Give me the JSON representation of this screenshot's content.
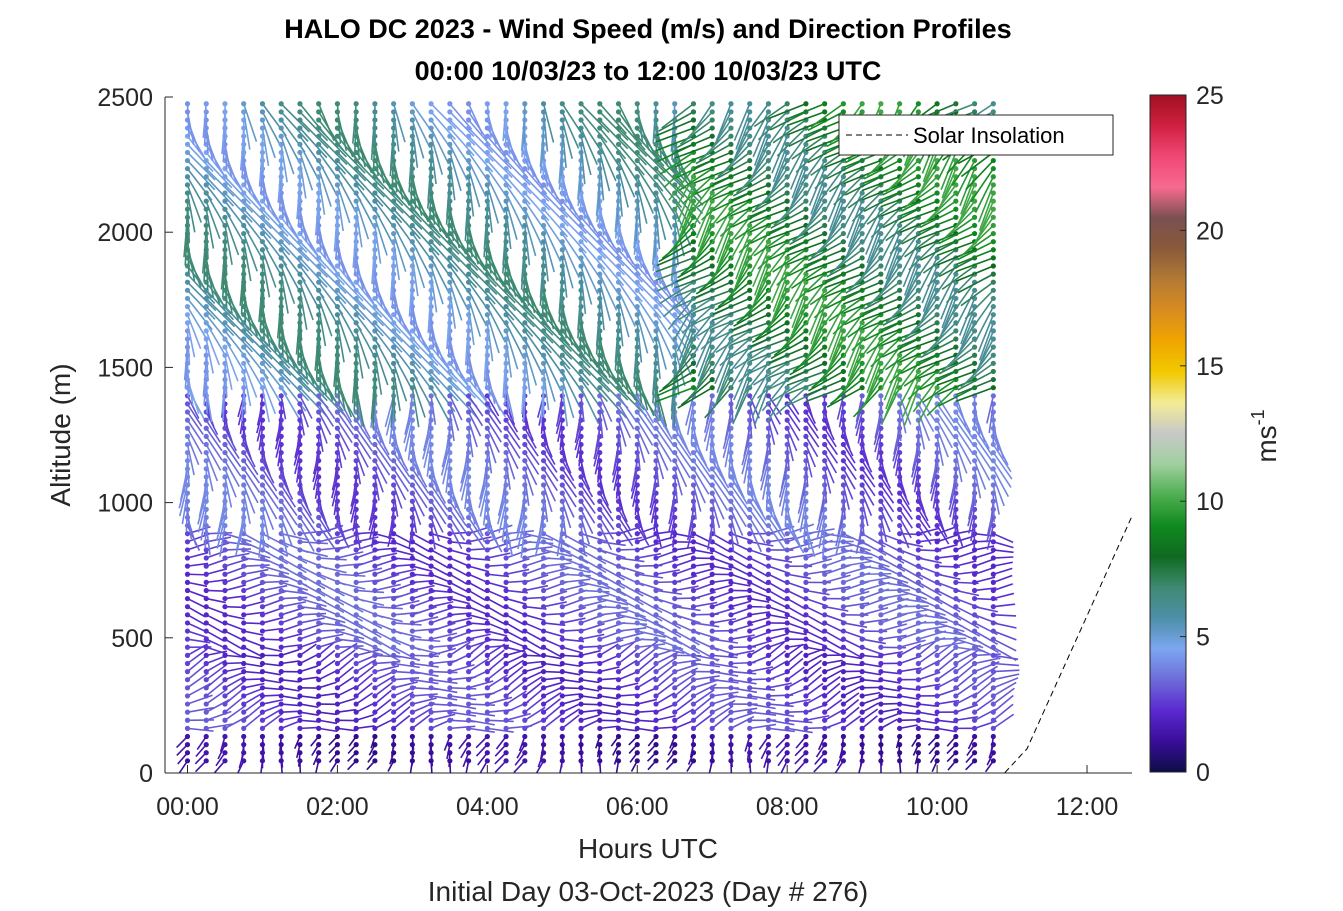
{
  "chart_data": {
    "type": "quiver",
    "title": "HALO DC 2023 - Wind Speed (m/s) and Direction Profiles",
    "subtitle": "00:00 10/03/23 to 12:00 10/03/23  UTC",
    "xlabel": "Hours UTC",
    "xlabel2": "Initial Day 03-Oct-2023 (Day # 276)",
    "ylabel": "Altitude (m)",
    "xlim": [
      -0.3,
      12.6
    ],
    "ylim": [
      0,
      2500
    ],
    "x_ticks": [
      {
        "value": 0,
        "label": "00:00"
      },
      {
        "value": 2,
        "label": "02:00"
      },
      {
        "value": 4,
        "label": "04:00"
      },
      {
        "value": 6,
        "label": "06:00"
      },
      {
        "value": 8,
        "label": "08:00"
      },
      {
        "value": 10,
        "label": "10:00"
      },
      {
        "value": 12,
        "label": "12:00"
      }
    ],
    "y_ticks": [
      {
        "value": 0,
        "label": "0"
      },
      {
        "value": 500,
        "label": "500"
      },
      {
        "value": 1000,
        "label": "1000"
      },
      {
        "value": 1500,
        "label": "1500"
      },
      {
        "value": 2000,
        "label": "2000"
      },
      {
        "value": 2500,
        "label": "2500"
      }
    ],
    "colorbar": {
      "label": "ms",
      "label_exponent": "-1",
      "range": [
        0,
        25
      ],
      "ticks": [
        {
          "value": 0,
          "label": "0"
        },
        {
          "value": 5,
          "label": "5"
        },
        {
          "value": 10,
          "label": "10"
        },
        {
          "value": 15,
          "label": "15"
        },
        {
          "value": 20,
          "label": "20"
        },
        {
          "value": 25,
          "label": "25"
        }
      ],
      "colors": [
        "#0d0d45",
        "#3a0d9a",
        "#5a2ad0",
        "#6d6cd8",
        "#7da6f0",
        "#4d8fa8",
        "#3f8a73",
        "#0f6a1f",
        "#0f8a1f",
        "#4fae50",
        "#9fd0a0",
        "#c8c8c8",
        "#f3ec96",
        "#f1c900",
        "#f0a500",
        "#d98c1f",
        "#b37a35",
        "#8a5a3a",
        "#7a5050",
        "#f76a90",
        "#f04875",
        "#d02040",
        "#a01020"
      ]
    },
    "legend": {
      "entries": [
        "Solar Insolation"
      ],
      "placement": "top-right"
    },
    "profile_interval_hours": 0.25,
    "profile_start_hour": 0.0,
    "profile_end_hour": 10.75,
    "level_spacing_m": 30,
    "max_altitude_m": 2500,
    "solar_insolation": {
      "x": [
        -0.3,
        10.9,
        11.2,
        12.6
      ],
      "y": [
        0,
        0,
        90,
        950
      ]
    },
    "wind_regimes": [
      {
        "x_range": [
          0,
          10.75
        ],
        "alt_range": [
          0,
          150
        ],
        "speed": 1.2,
        "direction_deg": 200
      },
      {
        "x_range": [
          0,
          10.75
        ],
        "alt_range": [
          150,
          450
        ],
        "speed": 2.5,
        "direction_deg": 75
      },
      {
        "x_range": [
          0,
          10.75
        ],
        "alt_range": [
          450,
          900
        ],
        "speed": 2.8,
        "direction_deg": 95
      },
      {
        "x_range": [
          0,
          10.75
        ],
        "alt_range": [
          900,
          1400
        ],
        "speed": 3.2,
        "direction_deg": 170
      },
      {
        "x_range": [
          0,
          6.5
        ],
        "alt_range": [
          1400,
          2500
        ],
        "speed": 5.5,
        "direction_deg": 160
      },
      {
        "x_range": [
          6.5,
          10.75
        ],
        "alt_range": [
          1400,
          2500
        ],
        "speed": 8.0,
        "direction_deg": 225
      }
    ]
  }
}
